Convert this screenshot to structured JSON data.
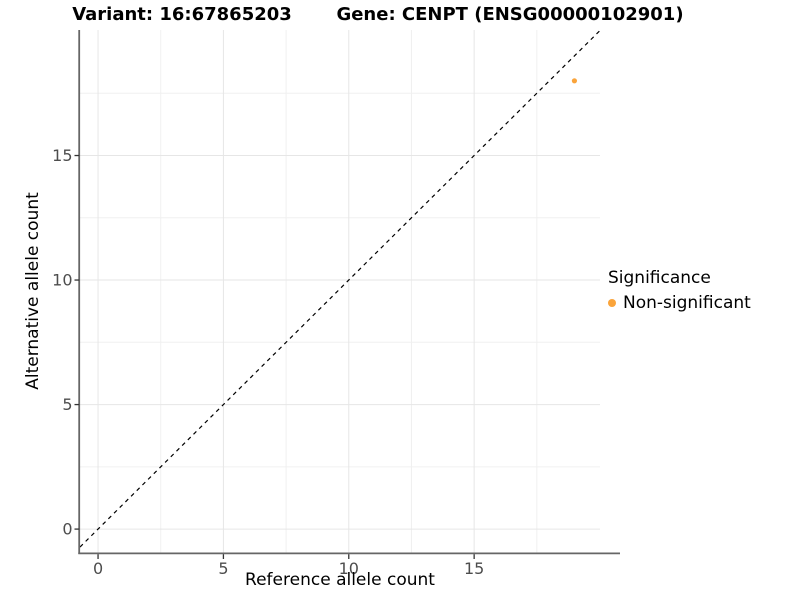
{
  "titles": {
    "variant": "Variant: 16:67865203",
    "gene": "Gene: CENPT (ENSG00000102901)"
  },
  "axes": {
    "x": {
      "label": "Reference allele count"
    },
    "y": {
      "label": "Alternative allele count"
    }
  },
  "legend": {
    "title": "Significance",
    "items": [
      {
        "label": "Non-significant",
        "color": "#FAA43B"
      }
    ]
  },
  "colors": {
    "point": "#FAA43B",
    "grid_major": "#E6E6E6",
    "grid_minor": "#F0F0F0",
    "axis_line": "#666666",
    "tick_mark": "#333333",
    "tick_label": "#4D4D4D",
    "reference_line": "#000000",
    "background": "#FFFFFF"
  },
  "chart_data": {
    "type": "scatter",
    "title_left": "Variant: 16:67865203",
    "title_right": "Gene: CENPT (ENSG00000102901)",
    "xlabel": "Reference allele count",
    "ylabel": "Alternative allele count",
    "xlim": [
      -0.72,
      20.02
    ],
    "ylim": [
      -0.96,
      20.04
    ],
    "x_ticks": [
      0,
      5,
      10,
      15
    ],
    "y_ticks": [
      0,
      5,
      10,
      15
    ],
    "x_tick_labels": [
      "0",
      "5",
      "10",
      "15"
    ],
    "y_tick_labels": [
      "0",
      "5",
      "10",
      "15"
    ],
    "x_minor_ticks": [
      2.5,
      7.5,
      12.5,
      17.5
    ],
    "y_minor_ticks": [
      2.5,
      7.5,
      12.5,
      17.5
    ],
    "grid": true,
    "legend_position": "right",
    "legend_title": "Significance",
    "series": [
      {
        "name": "Non-significant",
        "color": "#FAA43B",
        "points": [
          {
            "x": 19,
            "y": 18
          }
        ]
      }
    ],
    "reference_line": {
      "kind": "identity y=x",
      "style": "dashed",
      "color": "#000000"
    }
  }
}
